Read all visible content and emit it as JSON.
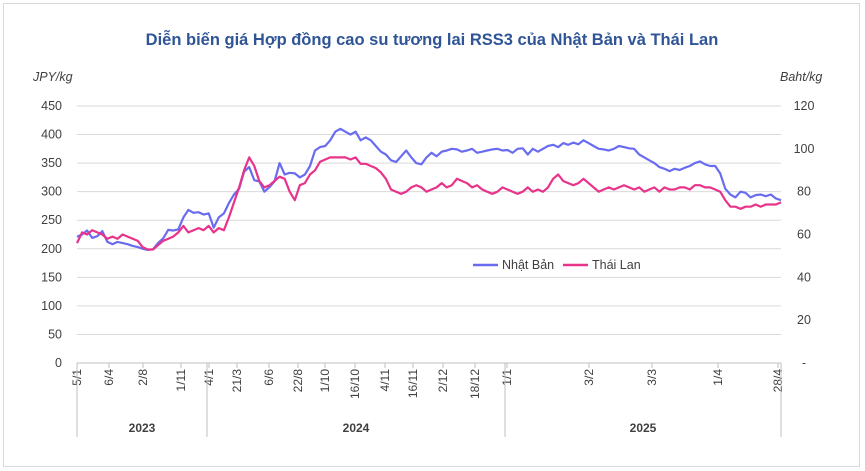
{
  "colors": {
    "japan": "#6a6cf0",
    "thailand": "#e8338b",
    "title": "#2f5597",
    "grid": "#d9d9d9"
  },
  "chart_data": {
    "type": "line",
    "title": "Diễn biến giá Hợp đồng cao su tương lai RSS3 của Nhật Bản và Thái Lan",
    "y_left": {
      "label": "JPY/kg",
      "range": [
        0,
        450
      ],
      "ticks": [
        "0",
        "50",
        "100",
        "150",
        "200",
        "250",
        "300",
        "350",
        "400",
        "450"
      ]
    },
    "y_right": {
      "label": "Baht/kg",
      "range": [
        0,
        120
      ],
      "ticks": [
        "-",
        "20",
        "40",
        "60",
        "80",
        "100",
        "120"
      ]
    },
    "x_labels": [
      "5/1",
      "6/4",
      "2/8",
      "1/11",
      "4/1",
      "21/3",
      "6/6",
      "22/8",
      "1/10",
      "16/10",
      "4/11",
      "16/11",
      "2/12",
      "18/12",
      "1/1",
      "3/2",
      "3/3",
      "1/4",
      "28/4"
    ],
    "years": [
      "2023",
      "2024",
      "2025"
    ],
    "legend": {
      "position": "center-right",
      "entries": [
        "Nhật Bản",
        "Thái Lan"
      ]
    },
    "series": [
      {
        "name": "Nhật Bản",
        "axis": "left",
        "points": [
          [
            0,
            221
          ],
          [
            1,
            225
          ],
          [
            2,
            232
          ],
          [
            3,
            219
          ],
          [
            4,
            222
          ],
          [
            5,
            231
          ],
          [
            6,
            212
          ],
          [
            7,
            208
          ],
          [
            8,
            212
          ],
          [
            9,
            210
          ],
          [
            10,
            208
          ],
          [
            11,
            205
          ],
          [
            12,
            203
          ],
          [
            13,
            200
          ],
          [
            14,
            198
          ],
          [
            15,
            199
          ],
          [
            16,
            210
          ],
          [
            17,
            218
          ],
          [
            18,
            233
          ],
          [
            19,
            232
          ],
          [
            20,
            234
          ],
          [
            21,
            255
          ],
          [
            22,
            268
          ],
          [
            23,
            263
          ],
          [
            24,
            264
          ],
          [
            25,
            260
          ],
          [
            26,
            262
          ],
          [
            27,
            237
          ],
          [
            28,
            255
          ],
          [
            29,
            262
          ],
          [
            30,
            280
          ],
          [
            31,
            295
          ],
          [
            32,
            305
          ],
          [
            33,
            335
          ],
          [
            34,
            343
          ],
          [
            35,
            320
          ],
          [
            36,
            318
          ],
          [
            37,
            300
          ],
          [
            38,
            308
          ],
          [
            39,
            318
          ],
          [
            40,
            350
          ],
          [
            41,
            330
          ],
          [
            42,
            333
          ],
          [
            43,
            332
          ],
          [
            44,
            325
          ],
          [
            45,
            330
          ],
          [
            46,
            345
          ],
          [
            47,
            372
          ],
          [
            48,
            378
          ],
          [
            49,
            380
          ],
          [
            50,
            390
          ],
          [
            51,
            405
          ],
          [
            52,
            410
          ],
          [
            53,
            405
          ],
          [
            54,
            400
          ],
          [
            55,
            405
          ],
          [
            56,
            390
          ],
          [
            57,
            395
          ],
          [
            58,
            390
          ],
          [
            59,
            380
          ],
          [
            60,
            370
          ],
          [
            61,
            365
          ],
          [
            62,
            355
          ],
          [
            63,
            352
          ],
          [
            64,
            362
          ],
          [
            65,
            372
          ],
          [
            66,
            360
          ],
          [
            67,
            350
          ],
          [
            68,
            348
          ],
          [
            69,
            360
          ],
          [
            70,
            368
          ],
          [
            71,
            362
          ],
          [
            72,
            370
          ],
          [
            73,
            372
          ],
          [
            74,
            375
          ],
          [
            75,
            374
          ],
          [
            76,
            370
          ],
          [
            77,
            372
          ],
          [
            78,
            375
          ],
          [
            79,
            368
          ],
          [
            80,
            370
          ],
          [
            81,
            372
          ],
          [
            82,
            374
          ],
          [
            83,
            375
          ],
          [
            84,
            372
          ],
          [
            85,
            373
          ],
          [
            86,
            368
          ],
          [
            87,
            375
          ],
          [
            88,
            376
          ],
          [
            89,
            365
          ],
          [
            90,
            375
          ],
          [
            91,
            370
          ],
          [
            92,
            375
          ],
          [
            93,
            380
          ],
          [
            94,
            382
          ],
          [
            95,
            378
          ],
          [
            96,
            385
          ],
          [
            97,
            382
          ],
          [
            98,
            386
          ],
          [
            99,
            383
          ],
          [
            100,
            390
          ],
          [
            101,
            385
          ],
          [
            102,
            380
          ],
          [
            103,
            375
          ],
          [
            104,
            374
          ],
          [
            105,
            372
          ],
          [
            106,
            375
          ],
          [
            107,
            380
          ],
          [
            108,
            378
          ],
          [
            109,
            376
          ],
          [
            110,
            375
          ],
          [
            111,
            365
          ],
          [
            112,
            360
          ],
          [
            113,
            355
          ],
          [
            114,
            350
          ],
          [
            115,
            343
          ],
          [
            116,
            340
          ],
          [
            117,
            336
          ],
          [
            118,
            340
          ],
          [
            119,
            338
          ],
          [
            120,
            342
          ],
          [
            121,
            345
          ],
          [
            122,
            350
          ],
          [
            123,
            353
          ],
          [
            124,
            348
          ],
          [
            125,
            345
          ],
          [
            126,
            345
          ],
          [
            127,
            332
          ],
          [
            128,
            305
          ],
          [
            129,
            295
          ],
          [
            130,
            290
          ],
          [
            131,
            300
          ],
          [
            132,
            298
          ],
          [
            133,
            290
          ],
          [
            134,
            294
          ],
          [
            135,
            295
          ],
          [
            136,
            292
          ],
          [
            137,
            295
          ],
          [
            138,
            288
          ],
          [
            139,
            285
          ]
        ]
      },
      {
        "name": "Thái Lan",
        "axis": "right",
        "points": [
          [
            0,
            56
          ],
          [
            1,
            61
          ],
          [
            2,
            60
          ],
          [
            3,
            62
          ],
          [
            4,
            61
          ],
          [
            5,
            60
          ],
          [
            6,
            58
          ],
          [
            7,
            59
          ],
          [
            8,
            58
          ],
          [
            9,
            60
          ],
          [
            10,
            59
          ],
          [
            11,
            58
          ],
          [
            12,
            57
          ],
          [
            13,
            54
          ],
          [
            14,
            53
          ],
          [
            15,
            53
          ],
          [
            16,
            55
          ],
          [
            17,
            57
          ],
          [
            18,
            58
          ],
          [
            19,
            59
          ],
          [
            20,
            61
          ],
          [
            21,
            64
          ],
          [
            22,
            61
          ],
          [
            23,
            62
          ],
          [
            24,
            63
          ],
          [
            25,
            62
          ],
          [
            26,
            64
          ],
          [
            27,
            61
          ],
          [
            28,
            63
          ],
          [
            29,
            62
          ],
          [
            30,
            68
          ],
          [
            31,
            75
          ],
          [
            32,
            82
          ],
          [
            33,
            90
          ],
          [
            34,
            96
          ],
          [
            35,
            92
          ],
          [
            36,
            85
          ],
          [
            37,
            82
          ],
          [
            38,
            83
          ],
          [
            39,
            85
          ],
          [
            40,
            87
          ],
          [
            41,
            86
          ],
          [
            42,
            80
          ],
          [
            43,
            76
          ],
          [
            44,
            83
          ],
          [
            45,
            84
          ],
          [
            46,
            88
          ],
          [
            47,
            90
          ],
          [
            48,
            94
          ],
          [
            49,
            95
          ],
          [
            50,
            96
          ],
          [
            51,
            96
          ],
          [
            52,
            96
          ],
          [
            53,
            96
          ],
          [
            54,
            95
          ],
          [
            55,
            96
          ],
          [
            56,
            93
          ],
          [
            57,
            93
          ],
          [
            58,
            92
          ],
          [
            59,
            91
          ],
          [
            60,
            89
          ],
          [
            61,
            86
          ],
          [
            62,
            81
          ],
          [
            63,
            80
          ],
          [
            64,
            79
          ],
          [
            65,
            80
          ],
          [
            66,
            82
          ],
          [
            67,
            83
          ],
          [
            68,
            82
          ],
          [
            69,
            80
          ],
          [
            70,
            81
          ],
          [
            71,
            82
          ],
          [
            72,
            84
          ],
          [
            73,
            82
          ],
          [
            74,
            83
          ],
          [
            75,
            86
          ],
          [
            76,
            85
          ],
          [
            77,
            84
          ],
          [
            78,
            82
          ],
          [
            79,
            83
          ],
          [
            80,
            81
          ],
          [
            81,
            80
          ],
          [
            82,
            79
          ],
          [
            83,
            80
          ],
          [
            84,
            82
          ],
          [
            85,
            81
          ],
          [
            86,
            80
          ],
          [
            87,
            79
          ],
          [
            88,
            80
          ],
          [
            89,
            82
          ],
          [
            90,
            80
          ],
          [
            91,
            81
          ],
          [
            92,
            80
          ],
          [
            93,
            82
          ],
          [
            94,
            86
          ],
          [
            95,
            88
          ],
          [
            96,
            85
          ],
          [
            97,
            84
          ],
          [
            98,
            83
          ],
          [
            99,
            84
          ],
          [
            100,
            86
          ],
          [
            101,
            84
          ],
          [
            102,
            82
          ],
          [
            103,
            80
          ],
          [
            104,
            81
          ],
          [
            105,
            82
          ],
          [
            106,
            81
          ],
          [
            107,
            82
          ],
          [
            108,
            83
          ],
          [
            109,
            82
          ],
          [
            110,
            81
          ],
          [
            111,
            82
          ],
          [
            112,
            80
          ],
          [
            113,
            81
          ],
          [
            114,
            82
          ],
          [
            115,
            80
          ],
          [
            116,
            82
          ],
          [
            117,
            81
          ],
          [
            118,
            81
          ],
          [
            119,
            82
          ],
          [
            120,
            82
          ],
          [
            121,
            81
          ],
          [
            122,
            83
          ],
          [
            123,
            83
          ],
          [
            124,
            82
          ],
          [
            125,
            82
          ],
          [
            126,
            81
          ],
          [
            127,
            80
          ],
          [
            128,
            76
          ],
          [
            129,
            73
          ],
          [
            130,
            73
          ],
          [
            131,
            72
          ],
          [
            132,
            73
          ],
          [
            133,
            73
          ],
          [
            134,
            74
          ],
          [
            135,
            73
          ],
          [
            136,
            74
          ],
          [
            137,
            74
          ],
          [
            138,
            74
          ],
          [
            139,
            75
          ]
        ]
      }
    ]
  }
}
